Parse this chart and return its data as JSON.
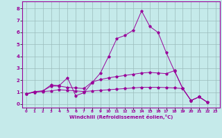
{
  "xlabel": "Windchill (Refroidissement éolien,°C)",
  "background_color": "#c5eaea",
  "grid_color": "#9bbcbc",
  "line_color": "#990099",
  "x_values": [
    0,
    1,
    2,
    3,
    4,
    5,
    6,
    7,
    8,
    9,
    10,
    11,
    12,
    13,
    14,
    15,
    16,
    17,
    18,
    19,
    20,
    21,
    22,
    23
  ],
  "xlim": [
    -0.5,
    23.5
  ],
  "ylim": [
    -0.3,
    8.6
  ],
  "yticks": [
    0,
    1,
    2,
    3,
    4,
    5,
    6,
    7,
    8
  ],
  "xticks": [
    0,
    1,
    2,
    3,
    4,
    5,
    6,
    7,
    8,
    9,
    10,
    11,
    12,
    13,
    14,
    15,
    16,
    17,
    18,
    19,
    20,
    21,
    22,
    23
  ],
  "series": [
    [
      0.85,
      1.05,
      1.1,
      1.6,
      1.55,
      2.2,
      0.7,
      0.95,
      1.8,
      2.6,
      4.0,
      5.5,
      5.75,
      6.2,
      7.8,
      6.5,
      6.0,
      4.3,
      2.75,
      1.3,
      0.3,
      0.6,
      0.15,
      null
    ],
    [
      0.85,
      1.0,
      1.1,
      1.5,
      1.5,
      1.4,
      1.35,
      1.3,
      1.85,
      2.05,
      2.2,
      2.3,
      2.4,
      2.5,
      2.6,
      2.65,
      2.6,
      2.55,
      2.8,
      1.3,
      0.3,
      0.6,
      0.15,
      null
    ],
    [
      0.85,
      1.0,
      1.05,
      1.1,
      1.2,
      1.15,
      1.1,
      1.05,
      1.1,
      1.15,
      1.2,
      1.25,
      1.3,
      1.35,
      1.4,
      1.4,
      1.4,
      1.38,
      1.35,
      1.3,
      0.3,
      0.6,
      0.15,
      null
    ]
  ]
}
